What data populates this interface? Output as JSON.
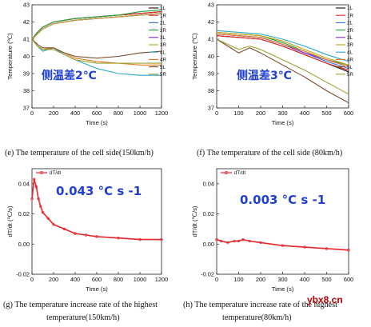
{
  "colors": {
    "1L": "#111111",
    "1R": "#e8252b",
    "2L": "#2f6fe0",
    "2R": "#1fa53a",
    "3L": "#7a2bd1",
    "3R": "#c8a01e",
    "4L": "#2aa7c9",
    "4R": "#e67a22",
    "5L": "#7b4a2a",
    "5R": "#9aa32f",
    "rate": "#e8252b",
    "annotation": "#1f3fd6",
    "watermark": "#b30000"
  },
  "captions": {
    "e": "(e) The temperature of the cell side(150km/h)",
    "f": "(f) The temperature of the cell side (80km/h)",
    "g_line1": "(g) The temperature increase rate of the highest",
    "g_line2": "temperature(150km/h)",
    "h_line1": "(h) The temperature increase rate of the highest",
    "h_line2": "temperature(80km/h)"
  },
  "watermark": "ybx8.cn",
  "chart_data": [
    {
      "id": "e",
      "type": "line",
      "xlabel": "Time (s)",
      "ylabel": "Temperature (℃)",
      "xlim": [
        0,
        1200
      ],
      "ylim": [
        37,
        43
      ],
      "xticks": [
        0,
        200,
        400,
        600,
        800,
        1000,
        1200
      ],
      "yticks": [
        37,
        38,
        39,
        40,
        41,
        42,
        43
      ],
      "legend_position": "top-right",
      "annotation": "侧温差2℃",
      "series": [
        {
          "name": "1L",
          "x": [
            0,
            50,
            100,
            200,
            400,
            600,
            800,
            1000,
            1200
          ],
          "y": [
            41.0,
            41.4,
            41.7,
            42.0,
            42.2,
            42.3,
            42.4,
            42.5,
            42.6
          ]
        },
        {
          "name": "1R",
          "x": [
            0,
            50,
            100,
            200,
            400,
            600,
            800,
            1000,
            1200
          ],
          "y": [
            41.0,
            41.4,
            41.7,
            42.0,
            42.2,
            42.3,
            42.4,
            42.5,
            42.6
          ]
        },
        {
          "name": "2L",
          "x": [
            0,
            50,
            100,
            200,
            400,
            600,
            800,
            1000,
            1200
          ],
          "y": [
            41.0,
            41.3,
            41.6,
            41.9,
            42.1,
            42.2,
            42.3,
            42.4,
            42.5
          ]
        },
        {
          "name": "2R",
          "x": [
            0,
            50,
            100,
            200,
            400,
            600,
            800,
            1000,
            1200
          ],
          "y": [
            41.0,
            41.4,
            41.7,
            42.0,
            42.2,
            42.3,
            42.4,
            42.6,
            42.7
          ]
        },
        {
          "name": "3L",
          "x": [
            0,
            50,
            100,
            200,
            400,
            600,
            800,
            1000,
            1200
          ],
          "y": [
            41.0,
            41.3,
            41.6,
            41.9,
            42.1,
            42.2,
            42.3,
            42.4,
            42.5
          ]
        },
        {
          "name": "3R",
          "x": [
            0,
            50,
            100,
            200,
            400,
            600,
            800,
            1000,
            1200
          ],
          "y": [
            41.0,
            41.3,
            41.6,
            41.9,
            42.1,
            42.2,
            42.3,
            42.4,
            42.5
          ]
        },
        {
          "name": "4L",
          "x": [
            0,
            50,
            100,
            200,
            300,
            400,
            600,
            800,
            1000,
            1200
          ],
          "y": [
            41.0,
            40.6,
            40.3,
            40.5,
            40.1,
            39.8,
            39.3,
            39.0,
            38.9,
            38.9
          ]
        },
        {
          "name": "4R",
          "x": [
            0,
            50,
            100,
            200,
            300,
            400,
            600,
            800,
            1000,
            1200
          ],
          "y": [
            41.0,
            40.6,
            40.4,
            40.5,
            40.2,
            39.9,
            39.7,
            39.6,
            39.5,
            39.5
          ]
        },
        {
          "name": "5L",
          "x": [
            0,
            50,
            100,
            200,
            300,
            400,
            600,
            800,
            1000,
            1200
          ],
          "y": [
            41.0,
            40.7,
            40.5,
            40.5,
            40.2,
            40.0,
            39.9,
            40.0,
            40.2,
            40.3
          ]
        },
        {
          "name": "5R",
          "x": [
            0,
            50,
            100,
            200,
            300,
            400,
            600,
            800,
            1000,
            1200
          ],
          "y": [
            41.0,
            40.6,
            40.4,
            40.4,
            40.1,
            39.8,
            39.6,
            39.6,
            39.6,
            39.6
          ]
        }
      ]
    },
    {
      "id": "f",
      "type": "line",
      "xlabel": "Time (s)",
      "ylabel": "Temperature (℃)",
      "xlim": [
        0,
        600
      ],
      "ylim": [
        37,
        43
      ],
      "xticks": [
        0,
        100,
        200,
        300,
        400,
        500,
        600
      ],
      "yticks": [
        37,
        38,
        39,
        40,
        41,
        42,
        43
      ],
      "legend_position": "top-right",
      "annotation": "侧温差3℃",
      "series": [
        {
          "name": "1L",
          "x": [
            0,
            100,
            200,
            300,
            400,
            500,
            600
          ],
          "y": [
            41.2,
            41.1,
            41.0,
            40.6,
            40.1,
            39.6,
            39.1
          ]
        },
        {
          "name": "1R",
          "x": [
            0,
            100,
            200,
            300,
            400,
            500,
            600
          ],
          "y": [
            41.2,
            41.1,
            41.0,
            40.6,
            40.1,
            39.6,
            39.2
          ]
        },
        {
          "name": "2L",
          "x": [
            0,
            100,
            200,
            300,
            400,
            500,
            600
          ],
          "y": [
            41.3,
            41.2,
            41.1,
            40.7,
            40.2,
            39.7,
            39.3
          ]
        },
        {
          "name": "2R",
          "x": [
            0,
            100,
            200,
            300,
            400,
            500,
            600
          ],
          "y": [
            41.4,
            41.3,
            41.2,
            40.8,
            40.3,
            39.8,
            39.5
          ]
        },
        {
          "name": "3L",
          "x": [
            0,
            100,
            200,
            300,
            400,
            500,
            600
          ],
          "y": [
            41.3,
            41.2,
            41.1,
            40.7,
            40.2,
            39.8,
            39.4
          ]
        },
        {
          "name": "3R",
          "x": [
            0,
            100,
            200,
            300,
            400,
            500,
            600
          ],
          "y": [
            41.4,
            41.3,
            41.2,
            40.9,
            40.4,
            39.9,
            39.5
          ]
        },
        {
          "name": "4L",
          "x": [
            0,
            100,
            200,
            300,
            400,
            500,
            600
          ],
          "y": [
            41.5,
            41.4,
            41.3,
            41.0,
            40.6,
            40.1,
            39.7
          ]
        },
        {
          "name": "4R",
          "x": [
            0,
            100,
            200,
            300,
            400,
            500,
            600
          ],
          "y": [
            41.3,
            41.2,
            41.1,
            40.7,
            40.3,
            39.8,
            39.4
          ]
        },
        {
          "name": "5L",
          "x": [
            0,
            50,
            100,
            150,
            200,
            300,
            400,
            500,
            600
          ],
          "y": [
            41.0,
            40.6,
            40.2,
            40.5,
            40.2,
            39.5,
            38.8,
            38.0,
            37.3
          ]
        },
        {
          "name": "5R",
          "x": [
            0,
            50,
            100,
            150,
            200,
            300,
            400,
            500,
            600
          ],
          "y": [
            41.0,
            40.7,
            40.4,
            40.6,
            40.4,
            39.8,
            39.2,
            38.5,
            37.8
          ]
        }
      ]
    },
    {
      "id": "g",
      "type": "line",
      "xlabel": "Time (s)",
      "ylabel": "dT/dt (℃/s)",
      "xlim": [
        0,
        1200
      ],
      "ylim": [
        -0.02,
        0.05
      ],
      "xticks": [
        0,
        200,
        400,
        600,
        800,
        1000,
        1200
      ],
      "yticks": [
        -0.02,
        0.0,
        0.02,
        0.04
      ],
      "legend_position": "top-left",
      "annotation": "0.043 °C s -1",
      "series": [
        {
          "name": "dT/dt",
          "x": [
            0,
            20,
            40,
            60,
            80,
            100,
            150,
            200,
            300,
            400,
            500,
            600,
            800,
            1000,
            1200
          ],
          "y": [
            0.03,
            0.043,
            0.038,
            0.03,
            0.025,
            0.021,
            0.017,
            0.013,
            0.01,
            0.007,
            0.006,
            0.005,
            0.004,
            0.003,
            0.003
          ]
        }
      ]
    },
    {
      "id": "h",
      "type": "line",
      "xlabel": "Time (s)",
      "ylabel": "dT/dt (℃/s)",
      "xlim": [
        0,
        600
      ],
      "ylim": [
        -0.02,
        0.05
      ],
      "xticks": [
        0,
        100,
        200,
        300,
        400,
        500,
        600
      ],
      "yticks": [
        -0.02,
        0.0,
        0.02,
        0.04
      ],
      "legend_position": "top-left",
      "annotation": "0.003 °C s -1",
      "series": [
        {
          "name": "dT/dt",
          "x": [
            0,
            20,
            50,
            80,
            100,
            120,
            150,
            200,
            300,
            400,
            500,
            600
          ],
          "y": [
            0.003,
            0.002,
            0.001,
            0.002,
            0.002,
            0.003,
            0.002,
            0.001,
            -0.001,
            -0.002,
            -0.003,
            -0.004
          ]
        }
      ]
    }
  ]
}
